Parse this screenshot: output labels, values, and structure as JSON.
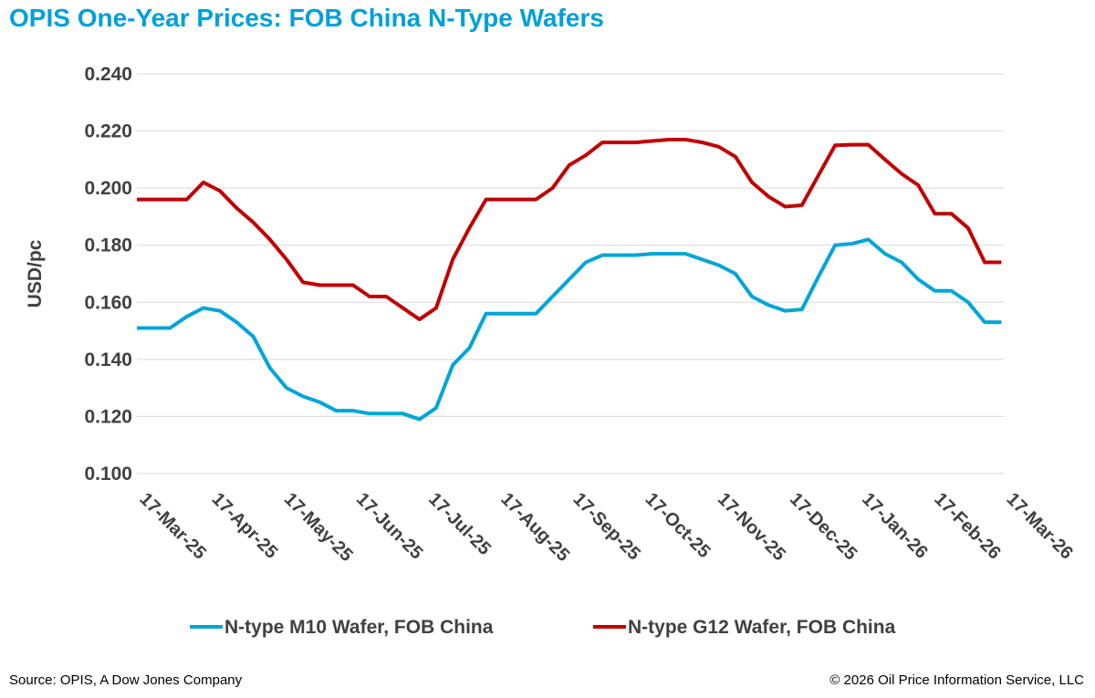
{
  "title": "OPIS One-Year Prices: FOB China N-Type Wafers",
  "footer": {
    "source": "Source: OPIS, A Dow Jones Company",
    "copyright": "© 2026 Oil Price Information Service, LLC"
  },
  "colors": {
    "title": "#00a0d8",
    "m10": "#00a5d6",
    "g12": "#c00000",
    "grid": "#d9d9d9",
    "text": "#404040"
  },
  "chart_data": {
    "type": "line",
    "title": "OPIS One-Year Prices: FOB China N-Type Wafers",
    "ylabel": "USD/pc",
    "xlabel": "",
    "ylim": [
      0.1,
      0.24
    ],
    "yticks": [
      "0.100",
      "0.120",
      "0.140",
      "0.160",
      "0.180",
      "0.200",
      "0.220",
      "0.240"
    ],
    "xlim": [
      "2025-03-17",
      "2026-03-17"
    ],
    "xticks": [
      "17-Mar-25",
      "17-Apr-25",
      "17-May-25",
      "17-Jun-25",
      "17-Jul-25",
      "17-Aug-25",
      "17-Sep-25",
      "17-Oct-25",
      "17-Nov-25",
      "17-Dec-25",
      "17-Jan-26",
      "17-Feb-26",
      "17-Mar-26"
    ],
    "grid": "horizontal",
    "legend": "bottom",
    "x_start": "2025-03-17",
    "x_interval": "weekly",
    "series": [
      {
        "name": "N-type M10 Wafer, FOB China",
        "color": "#00a5d6",
        "values": [
          0.151,
          0.151,
          0.151,
          0.155,
          0.158,
          0.157,
          0.153,
          0.148,
          0.137,
          0.13,
          0.127,
          0.125,
          0.122,
          0.122,
          0.121,
          0.121,
          0.121,
          0.119,
          0.123,
          0.138,
          0.144,
          0.156,
          0.156,
          0.156,
          0.156,
          0.162,
          0.168,
          0.174,
          0.1765,
          0.1765,
          0.1765,
          0.177,
          0.177,
          0.177,
          0.175,
          0.173,
          0.17,
          0.162,
          0.159,
          0.157,
          0.1575,
          0.169,
          0.18,
          0.1805,
          0.182,
          0.177,
          0.174,
          0.168,
          0.164,
          0.164,
          0.16,
          0.153,
          0.153
        ]
      },
      {
        "name": "N-type G12 Wafer, FOB China",
        "color": "#c00000",
        "values": [
          0.196,
          0.196,
          0.196,
          0.196,
          0.202,
          0.199,
          0.193,
          0.188,
          0.182,
          0.175,
          0.167,
          0.166,
          0.166,
          0.166,
          0.162,
          0.162,
          0.158,
          0.154,
          0.158,
          0.175,
          0.186,
          0.196,
          0.196,
          0.196,
          0.196,
          0.2,
          0.208,
          0.2115,
          0.216,
          0.216,
          0.216,
          0.2165,
          0.217,
          0.217,
          0.216,
          0.2145,
          0.211,
          0.202,
          0.197,
          0.1935,
          0.194,
          0.2045,
          0.215,
          0.2152,
          0.2152,
          0.21,
          0.205,
          0.201,
          0.191,
          0.191,
          0.186,
          0.174,
          0.174
        ]
      }
    ]
  }
}
